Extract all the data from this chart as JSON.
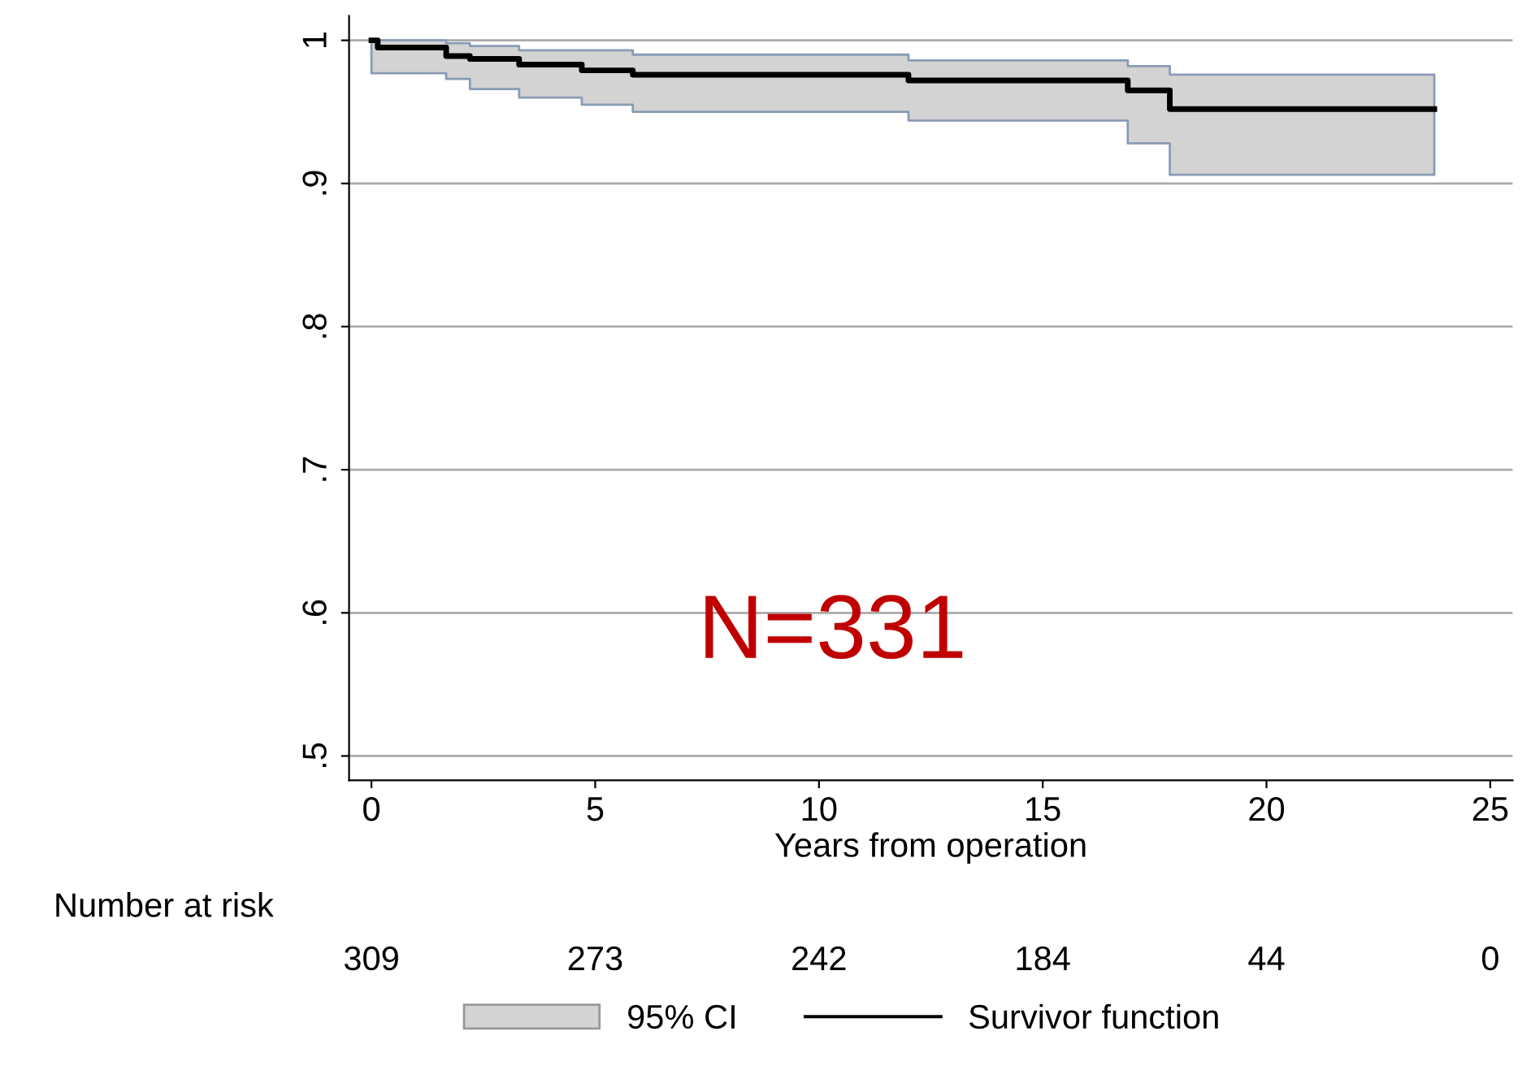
{
  "chart_data": {
    "type": "step",
    "xlabel": "Years from operation",
    "x": [
      0,
      0.14,
      1.67,
      2.2,
      3.3,
      4.7,
      5.84,
      12.0,
      16.9,
      17.84,
      23.75
    ],
    "series": [
      {
        "name": "Survivor function",
        "color": "#000000",
        "values": [
          1.0,
          0.995,
          0.989,
          0.987,
          0.983,
          0.979,
          0.976,
          0.972,
          0.965,
          0.952,
          0.952
        ],
        "lower": [
          0.977,
          0.977,
          0.973,
          0.966,
          0.96,
          0.955,
          0.95,
          0.944,
          0.928,
          0.906,
          0.906
        ],
        "upper": [
          1.0,
          1.0,
          0.998,
          0.996,
          0.993,
          0.993,
          0.99,
          0.986,
          0.982,
          0.976,
          0.976
        ]
      }
    ],
    "xlim": [
      -0.5,
      25.5
    ],
    "xticks": [
      0,
      5,
      10,
      15,
      20,
      25
    ],
    "ylim": [
      0.483,
      1.017
    ],
    "yticks": [
      {
        "value": 0.5,
        "label": ".5"
      },
      {
        "value": 0.6,
        "label": ".6"
      },
      {
        "value": 0.7,
        "label": ".7"
      },
      {
        "value": 0.8,
        "label": ".8"
      },
      {
        "value": 0.9,
        "label": ".9"
      },
      1
    ],
    "grid": "y",
    "legend": "bottom",
    "marker": "none",
    "line_style": "solid",
    "annotations": [
      "N=331",
      "95% CI",
      "Number at risk",
      "309",
      "273",
      "242",
      "184",
      "44",
      "0"
    ]
  }
}
